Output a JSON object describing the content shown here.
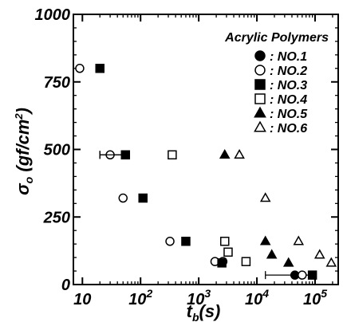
{
  "chart_data": {
    "type": "scatter",
    "title": "",
    "xlabel": "t",
    "xlabel_sub": "b",
    "xlabel_unit": "(s)",
    "ylabel": "σ",
    "ylabel_sub": "o",
    "ylabel_unit_pre": "(gf/cm",
    "ylabel_unit_sup": "2",
    "ylabel_unit_post": ")",
    "x_scale": "log",
    "xlim": [
      7,
      250000
    ],
    "ylim": [
      0,
      1000
    ],
    "x_ticks": [
      {
        "value": 10,
        "base": "10",
        "exp": ""
      },
      {
        "value": 100,
        "base": "10",
        "exp": "2"
      },
      {
        "value": 1000,
        "base": "10",
        "exp": "3"
      },
      {
        "value": 10000,
        "base": "10",
        "exp": "4"
      },
      {
        "value": 100000,
        "base": "10",
        "exp": "5"
      }
    ],
    "y_ticks": [
      {
        "value": 0,
        "label": "0"
      },
      {
        "value": 250,
        "label": "250"
      },
      {
        "value": 500,
        "label": "500"
      },
      {
        "value": 750,
        "label": "750"
      },
      {
        "value": 1000,
        "label": "1000"
      }
    ],
    "grid": false,
    "legend_title": "Acrylic Polymers",
    "legend_position": "top-right",
    "series": [
      {
        "name": ": NO.1",
        "marker": "filled-circle",
        "points": [
          [
            45000,
            35
          ]
        ],
        "errorbars": [
          [
            45000,
            35,
            14000,
            95000
          ]
        ]
      },
      {
        "name": ": NO.2",
        "marker": "open-circle",
        "points": [
          [
            9,
            800
          ],
          [
            30,
            480
          ],
          [
            50,
            320
          ],
          [
            320,
            160
          ],
          [
            1900,
            85
          ],
          [
            2600,
            85
          ],
          [
            60000,
            35
          ]
        ],
        "errorbars": [
          [
            30,
            480,
            20,
            55
          ]
        ]
      },
      {
        "name": ": NO.3",
        "marker": "filled-square",
        "points": [
          [
            20,
            800
          ],
          [
            55,
            480
          ],
          [
            110,
            320
          ],
          [
            600,
            160
          ],
          [
            2500,
            80
          ],
          [
            90000,
            35
          ]
        ],
        "errorbars": [
          [
            55,
            480,
            20,
            55
          ]
        ]
      },
      {
        "name": ": NO.4",
        "marker": "open-square",
        "points": [
          [
            350,
            480
          ],
          [
            2800,
            160
          ],
          [
            3200,
            120
          ],
          [
            6500,
            85
          ]
        ],
        "errorbars": []
      },
      {
        "name": ": NO.5",
        "marker": "filled-triangle",
        "points": [
          [
            2800,
            480
          ],
          [
            14000,
            160
          ],
          [
            18000,
            110
          ],
          [
            35000,
            80
          ]
        ],
        "errorbars": []
      },
      {
        "name": ": NO.6",
        "marker": "open-triangle",
        "points": [
          [
            5000,
            480
          ],
          [
            14000,
            320
          ],
          [
            52000,
            160
          ],
          [
            120000,
            110
          ],
          [
            190000,
            80
          ]
        ],
        "errorbars": []
      }
    ]
  }
}
